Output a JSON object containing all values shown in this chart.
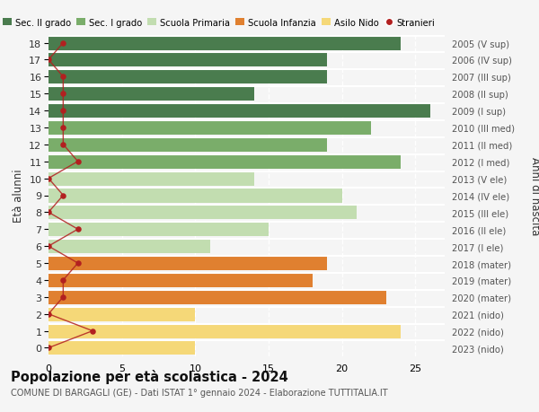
{
  "ages": [
    18,
    17,
    16,
    15,
    14,
    13,
    12,
    11,
    10,
    9,
    8,
    7,
    6,
    5,
    4,
    3,
    2,
    1,
    0
  ],
  "right_labels": [
    "2005 (V sup)",
    "2006 (IV sup)",
    "2007 (III sup)",
    "2008 (II sup)",
    "2009 (I sup)",
    "2010 (III med)",
    "2011 (II med)",
    "2012 (I med)",
    "2013 (V ele)",
    "2014 (IV ele)",
    "2015 (III ele)",
    "2016 (II ele)",
    "2017 (I ele)",
    "2018 (mater)",
    "2019 (mater)",
    "2020 (mater)",
    "2021 (nido)",
    "2022 (nido)",
    "2023 (nido)"
  ],
  "bar_values": [
    24,
    19,
    19,
    14,
    26,
    22,
    19,
    24,
    14,
    20,
    21,
    15,
    11,
    19,
    18,
    23,
    10,
    24,
    10
  ],
  "bar_colors": [
    "#4a7c4e",
    "#4a7c4e",
    "#4a7c4e",
    "#4a7c4e",
    "#4a7c4e",
    "#7aad6a",
    "#7aad6a",
    "#7aad6a",
    "#c2ddb0",
    "#c2ddb0",
    "#c2ddb0",
    "#c2ddb0",
    "#c2ddb0",
    "#e08030",
    "#e08030",
    "#e08030",
    "#f5d878",
    "#f5d878",
    "#f5d878"
  ],
  "stranieri_values": [
    1,
    0,
    1,
    1,
    1,
    1,
    1,
    2,
    0,
    1,
    0,
    2,
    0,
    2,
    1,
    1,
    0,
    3,
    0
  ],
  "stranieri_color": "#b22020",
  "legend_labels": [
    "Sec. II grado",
    "Sec. I grado",
    "Scuola Primaria",
    "Scuola Infanzia",
    "Asilo Nido",
    "Stranieri"
  ],
  "legend_colors": [
    "#4a7c4e",
    "#7aad6a",
    "#c2ddb0",
    "#e08030",
    "#f5d878",
    "#b22020"
  ],
  "title": "Popolazione per età scolastica - 2024",
  "subtitle": "COMUNE DI BARGAGLI (GE) - Dati ISTAT 1° gennaio 2024 - Elaborazione TUTTITALIA.IT",
  "ylabel": "Età alunni",
  "right_ylabel": "Anni di nascita",
  "xlim": [
    0,
    27
  ],
  "xticks": [
    0,
    5,
    10,
    15,
    20,
    25
  ],
  "background_color": "#f5f5f5",
  "grid_color": "#dddddd"
}
